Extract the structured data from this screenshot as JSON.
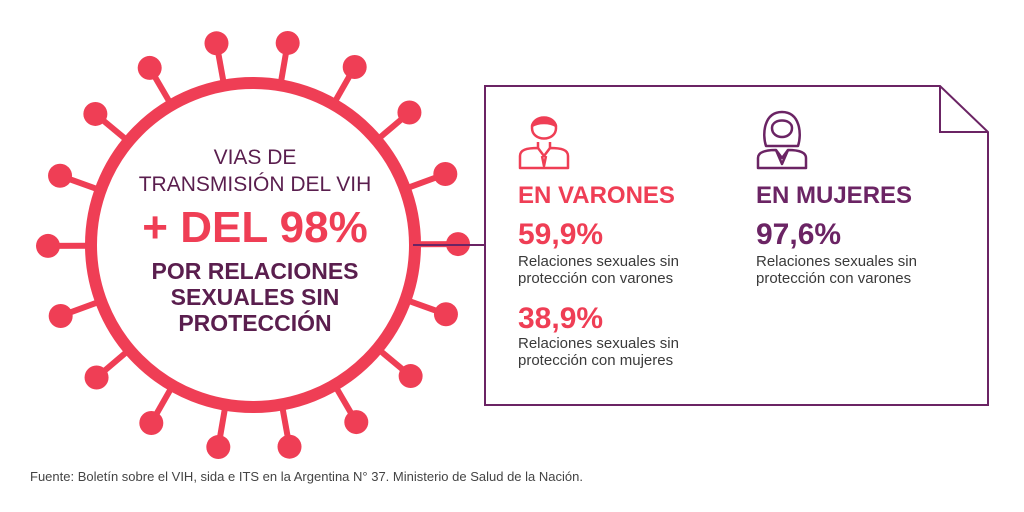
{
  "colors": {
    "accent": "#ef3e55",
    "brand": "#6b2464",
    "text": "#3a3a3a"
  },
  "circle": {
    "line1": "VIAS DE",
    "line2": "TRANSMISIÓN DEL VIH",
    "headline": "+ DEL 98%",
    "subline": "POR RELACIONES SEXUALES SIN PROTECCIÓN"
  },
  "men": {
    "icon": "man-icon",
    "label": "EN VARONES",
    "stat1": {
      "value": "59,9%",
      "desc": "Relaciones sexuales sin protección con varones"
    },
    "stat2": {
      "value": "38,9%",
      "desc": "Relaciones sexuales sin protección con mujeres"
    }
  },
  "women": {
    "icon": "woman-icon",
    "label": "EN MUJERES",
    "stat1": {
      "value": "97,6%",
      "desc": "Relaciones sexuales sin protección con varones"
    }
  },
  "footer": "Fuente: Boletín sobre el VIH, sida e ITS en la Argentina N° 37. Ministerio de Salud de la Nación."
}
